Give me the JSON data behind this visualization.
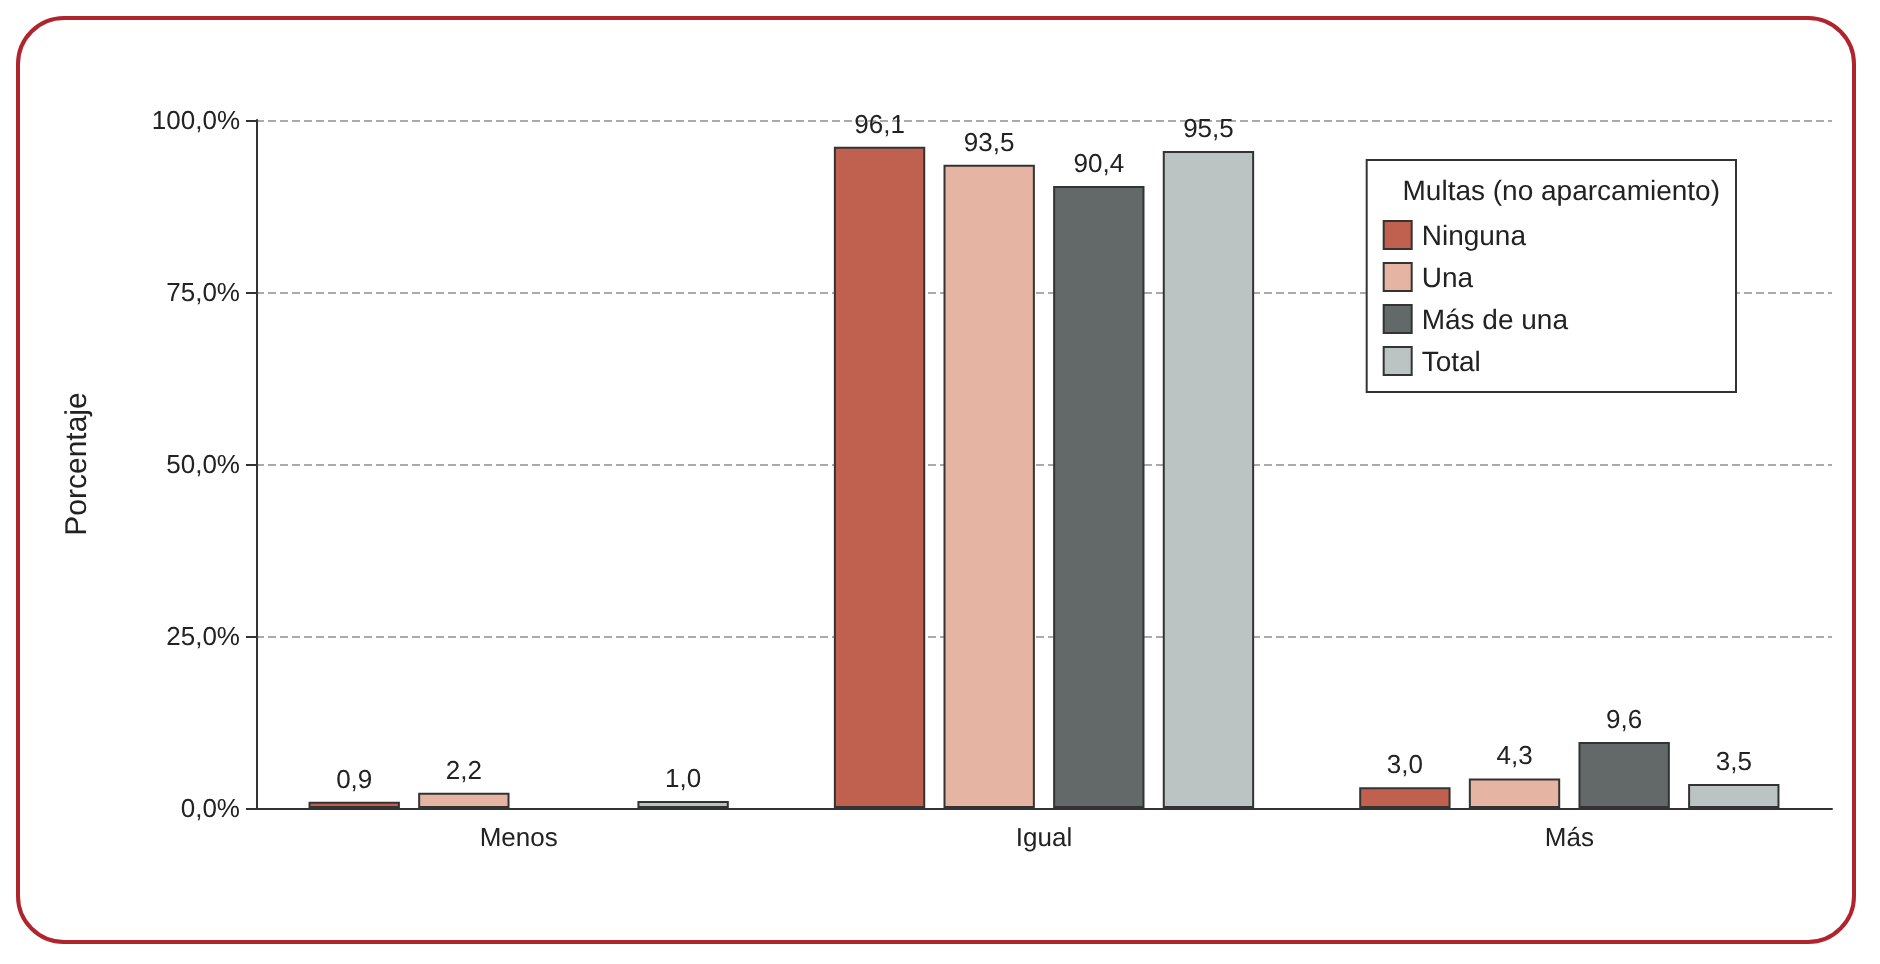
{
  "chart_data": {
    "type": "bar",
    "ylabel": "Porcentaje",
    "legend_title": "Multas (no aparcamiento)",
    "categories": [
      "Menos",
      "Igual",
      "Más"
    ],
    "series": [
      {
        "name": "Ninguna",
        "color": "#c0604f",
        "values": [
          0.9,
          96.1,
          3.0
        ],
        "value_labels": [
          "0,9",
          "96,1",
          "3,0"
        ]
      },
      {
        "name": "Una",
        "color": "#e5b4a3",
        "values": [
          2.2,
          93.5,
          4.3
        ],
        "value_labels": [
          "2,2",
          "93,5",
          "4,3"
        ]
      },
      {
        "name": "Más de una",
        "color": "#636868",
        "values": [
          null,
          90.4,
          9.6
        ],
        "value_labels": [
          null,
          "90,4",
          "9,6"
        ]
      },
      {
        "name": "Total",
        "color": "#bcc3c3",
        "values": [
          1.0,
          95.5,
          3.5
        ],
        "value_labels": [
          "1,0",
          "95,5",
          "3,5"
        ]
      }
    ],
    "ylim": [
      0,
      100
    ],
    "yticks": [
      {
        "value": 0,
        "label": "0,0%"
      },
      {
        "value": 25,
        "label": "25,0%"
      },
      {
        "value": 50,
        "label": "50,0%"
      },
      {
        "value": 75,
        "label": "75,0%"
      },
      {
        "value": 100,
        "label": "100,0%"
      }
    ],
    "grid": "y",
    "line_style": "dashed",
    "legend": "top right"
  }
}
